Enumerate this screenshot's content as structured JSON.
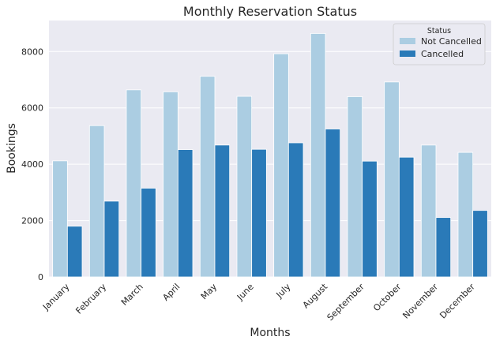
{
  "chart_data": {
    "type": "bar",
    "title": "Monthly Reservation Status",
    "xlabel": "Months",
    "ylabel": "Bookings",
    "categories": [
      "January",
      "February",
      "March",
      "April",
      "May",
      "June",
      "July",
      "August",
      "September",
      "October",
      "November",
      "December"
    ],
    "series": [
      {
        "name": "Not Cancelled",
        "color": "#abcde2",
        "values": [
          4120,
          5370,
          6640,
          6570,
          7120,
          6410,
          7920,
          8640,
          6400,
          6920,
          4680,
          4420
        ]
      },
      {
        "name": "Cancelled",
        "color": "#2a7ab8",
        "values": [
          1800,
          2690,
          3150,
          4520,
          4680,
          4530,
          4760,
          5250,
          4110,
          4250,
          2110,
          2360
        ]
      }
    ],
    "ylim": [
      0,
      9100
    ],
    "yticks": [
      0,
      2000,
      4000,
      6000,
      8000
    ],
    "ytick_labels": [
      "0",
      "2000",
      "4000",
      "6000",
      "8000"
    ],
    "grid": true,
    "legend": {
      "title": "Status",
      "position": "top-right"
    }
  }
}
